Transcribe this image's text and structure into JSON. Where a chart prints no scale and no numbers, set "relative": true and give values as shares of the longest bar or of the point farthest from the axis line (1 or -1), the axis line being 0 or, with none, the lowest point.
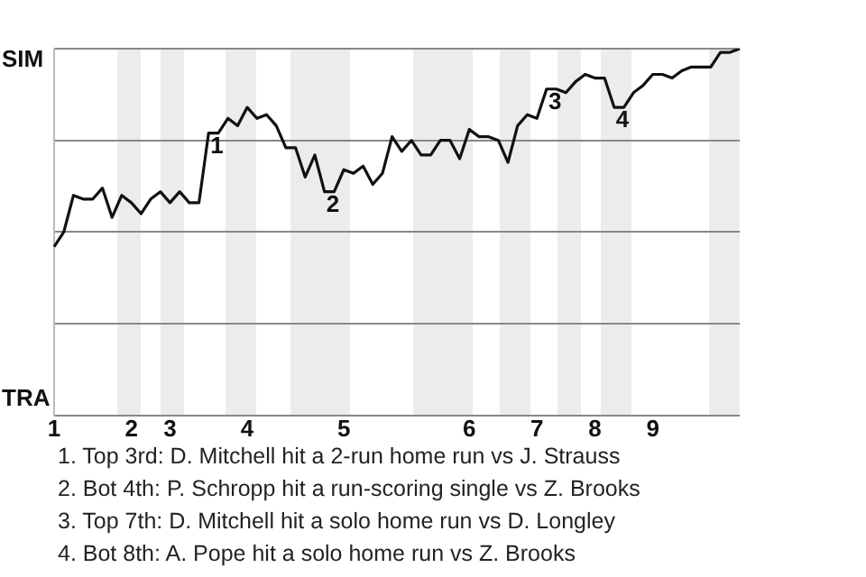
{
  "chart_data": {
    "type": "line",
    "relative": true,
    "categories": [
      "1",
      null,
      null,
      null,
      null,
      null,
      null,
      null,
      "2",
      null,
      null,
      null,
      "3",
      null,
      null,
      null,
      null,
      null,
      null,
      null,
      "4",
      null,
      null,
      null,
      null,
      null,
      null,
      null,
      null,
      null,
      "5",
      null,
      null,
      null,
      null,
      null,
      null,
      null,
      null,
      null,
      null,
      null,
      null,
      "6",
      null,
      null,
      null,
      null,
      null,
      null,
      "7",
      null,
      null,
      null,
      null,
      null,
      "8",
      null,
      null,
      null,
      null,
      null,
      "9",
      null,
      null,
      null,
      null,
      null,
      null,
      null,
      null,
      null
    ],
    "series": [
      {
        "color": "#111111",
        "values": [
          0.46,
          0.5,
          0.6,
          0.59,
          0.59,
          0.62,
          0.54,
          0.6,
          0.58,
          0.55,
          0.59,
          0.61,
          0.58,
          0.61,
          0.58,
          0.58,
          0.77,
          0.77,
          0.81,
          0.79,
          0.84,
          0.81,
          0.82,
          0.79,
          0.73,
          0.73,
          0.65,
          0.71,
          0.61,
          0.61,
          0.67,
          0.66,
          0.68,
          0.63,
          0.66,
          0.76,
          0.72,
          0.75,
          0.71,
          0.71,
          0.75,
          0.75,
          0.7,
          0.78,
          0.76,
          0.76,
          0.75,
          0.69,
          0.79,
          0.82,
          0.81,
          0.89,
          0.89,
          0.88,
          0.91,
          0.93,
          0.92,
          0.92,
          0.84,
          0.84,
          0.88,
          0.9,
          0.93,
          0.93,
          0.92,
          0.94,
          0.95,
          0.95,
          0.95,
          0.99,
          0.99,
          1
        ]
      }
    ],
    "grid": "y",
    "legend": false,
    "marker": "none",
    "line_style": "solid",
    "annotations": [
      "SIM",
      "TRA",
      {
        "text": "1",
        "y": 0.77
      },
      {
        "text": "2",
        "y": 0.61
      },
      {
        "text": "3",
        "y": 0.89
      },
      {
        "text": "4",
        "y": 0.84
      },
      "1. Top 3rd: D. Mitchell hit a 2-run home run vs J. Strauss",
      "2. Bot 4th: P. Schropp hit a run-scoring single vs Z. Brooks",
      "3. Top 7th: D. Mitchell hit a solo home run vs D. Longley",
      "4. Bot 8th: A. Pope hit a solo home run vs Z. Brooks"
    ]
  }
}
